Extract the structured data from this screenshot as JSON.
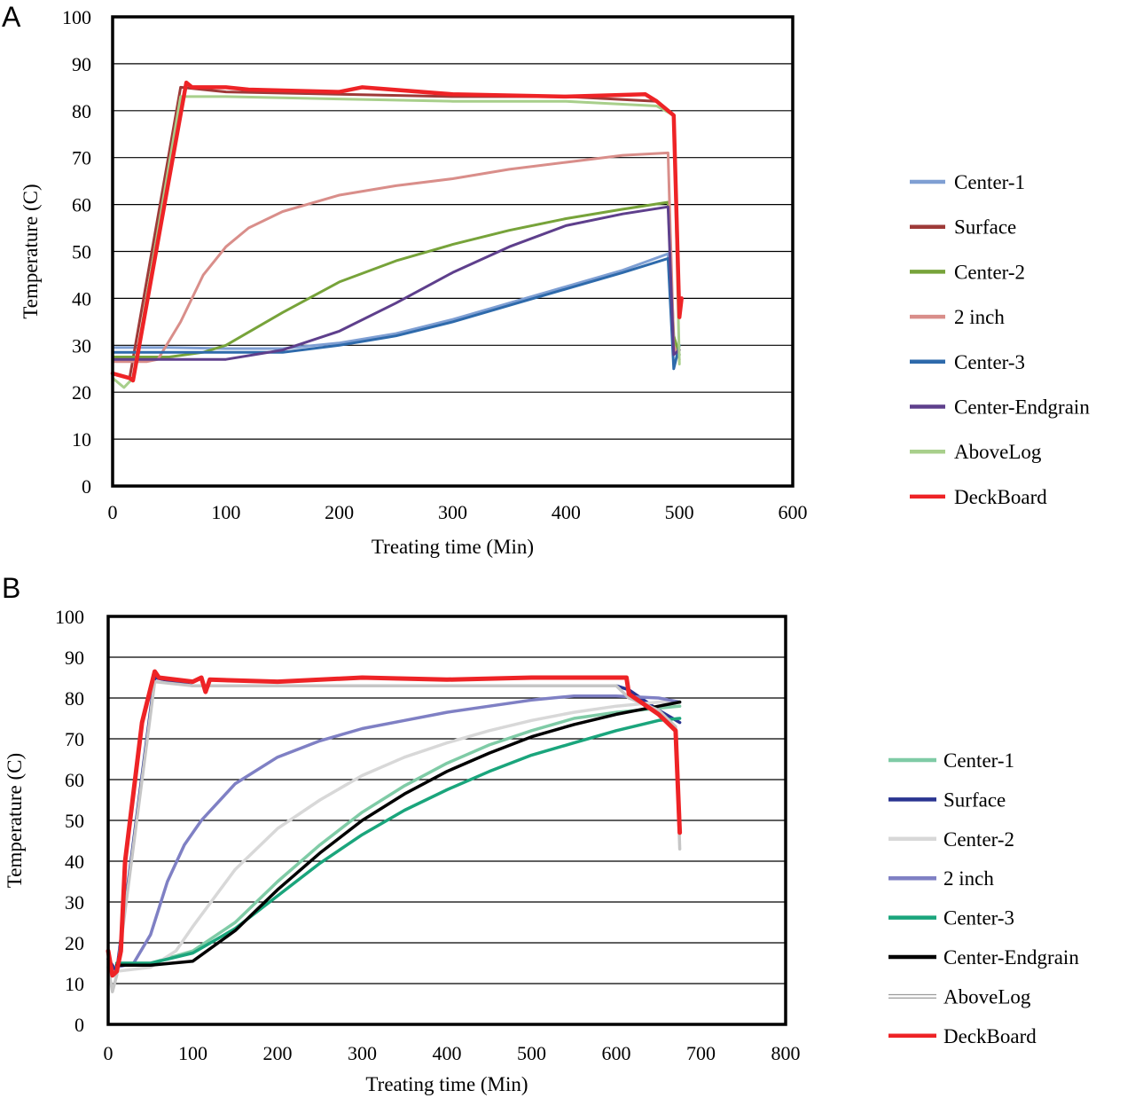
{
  "chart_data": [
    {
      "panel": "A",
      "type": "line",
      "title": "",
      "xlabel": "Treating time (Min)",
      "ylabel": "Temperature (C)",
      "xlim": [
        0,
        600
      ],
      "ylim": [
        0,
        100
      ],
      "xticks": [
        0,
        100,
        200,
        300,
        400,
        500,
        600
      ],
      "yticks": [
        0,
        10,
        20,
        30,
        40,
        50,
        60,
        70,
        80,
        90,
        100
      ],
      "grid": true,
      "legend_position": "right",
      "series": [
        {
          "name": "Center-1",
          "color": "#7f9fd3",
          "x": [
            0,
            50,
            100,
            150,
            200,
            250,
            300,
            350,
            400,
            450,
            490,
            495,
            500
          ],
          "y": [
            29.5,
            29.5,
            29.3,
            29.3,
            30.5,
            32.5,
            35.5,
            39,
            42.5,
            46,
            49.5,
            30,
            28
          ]
        },
        {
          "name": "Surface",
          "color": "#9e3a38",
          "x": [
            0,
            15,
            60,
            100,
            200,
            300,
            400,
            480,
            495,
            500
          ],
          "y": [
            24,
            23,
            85,
            84,
            83.5,
            83,
            83,
            82,
            79,
            36
          ]
        },
        {
          "name": "Center-2",
          "color": "#77a33a",
          "x": [
            0,
            50,
            80,
            100,
            150,
            200,
            250,
            300,
            350,
            400,
            450,
            490,
            495,
            500
          ],
          "y": [
            27.5,
            27.5,
            28.5,
            30,
            37,
            43.5,
            48,
            51.5,
            54.5,
            57,
            59,
            60.5,
            32,
            28
          ]
        },
        {
          "name": "2 inch",
          "color": "#d98e8a",
          "x": [
            0,
            30,
            40,
            60,
            80,
            100,
            120,
            150,
            200,
            250,
            300,
            350,
            400,
            450,
            490,
            495,
            500
          ],
          "y": [
            26.5,
            26.5,
            27,
            35,
            45,
            51,
            55,
            58.5,
            62,
            64,
            65.5,
            67.5,
            69,
            70.5,
            71,
            30,
            27
          ]
        },
        {
          "name": "Center-3",
          "color": "#2e6aab",
          "x": [
            0,
            50,
            100,
            150,
            200,
            250,
            300,
            350,
            400,
            450,
            490,
            495,
            500
          ],
          "y": [
            28.5,
            28.5,
            28.5,
            28.5,
            30,
            32,
            35,
            38.5,
            42,
            45.5,
            48.5,
            25,
            30
          ]
        },
        {
          "name": "Center-Endgrain",
          "color": "#5e3f8c",
          "x": [
            0,
            50,
            100,
            150,
            200,
            250,
            300,
            350,
            400,
            450,
            490,
            495,
            500
          ],
          "y": [
            27,
            27,
            27,
            29,
            33,
            39,
            45.5,
            51,
            55.5,
            58,
            59.5,
            28,
            29
          ]
        },
        {
          "name": "AboveLog",
          "color": "#a8cf8b",
          "x": [
            0,
            10,
            18,
            60,
            100,
            200,
            300,
            400,
            480,
            495,
            500
          ],
          "y": [
            23,
            21,
            23,
            83,
            83,
            82.5,
            82,
            82,
            81,
            79,
            26
          ]
        },
        {
          "name": "DeckBoard",
          "color": "#ee2326",
          "x": [
            0,
            15,
            18,
            65,
            70,
            100,
            120,
            200,
            220,
            300,
            400,
            470,
            480,
            495,
            500,
            502
          ],
          "y": [
            24,
            23,
            22.5,
            86,
            85,
            85,
            84.5,
            84,
            85,
            83.5,
            83,
            83.5,
            82,
            79,
            36,
            40
          ]
        }
      ]
    },
    {
      "panel": "B",
      "type": "line",
      "title": "",
      "xlabel": "Treating time (Min)",
      "ylabel": "Temperature (C)",
      "xlim": [
        0,
        800
      ],
      "ylim": [
        0,
        100
      ],
      "xticks": [
        0,
        100,
        200,
        300,
        400,
        500,
        600,
        700,
        800
      ],
      "yticks": [
        0,
        10,
        20,
        30,
        40,
        50,
        60,
        70,
        80,
        90,
        100
      ],
      "grid": true,
      "legend_position": "right",
      "series": [
        {
          "name": "Center-1",
          "color": "#7fcba6",
          "x": [
            10,
            50,
            100,
            150,
            200,
            250,
            300,
            350,
            400,
            450,
            500,
            550,
            600,
            650,
            675
          ],
          "y": [
            15,
            15,
            18,
            25,
            35,
            44,
            52,
            58.5,
            64,
            68.5,
            72,
            75,
            76.5,
            77.5,
            78
          ]
        },
        {
          "name": "Surface",
          "color": "#2a3491",
          "x": [
            0,
            10,
            55,
            100,
            150,
            200,
            300,
            400,
            500,
            600,
            615,
            650,
            675
          ],
          "y": [
            16,
            13,
            85,
            83,
            83,
            83,
            83,
            83,
            83,
            83,
            82,
            77,
            74
          ]
        },
        {
          "name": "Center-2",
          "color": "#d8d8d8",
          "x": [
            10,
            50,
            80,
            100,
            150,
            200,
            250,
            300,
            350,
            400,
            450,
            500,
            550,
            600,
            650,
            675
          ],
          "y": [
            13,
            14,
            18,
            24,
            38,
            48,
            55,
            61,
            65.5,
            69,
            72,
            74.5,
            76.5,
            78,
            79,
            79
          ]
        },
        {
          "name": "2 inch",
          "color": "#7f80c4",
          "x": [
            10,
            30,
            50,
            70,
            90,
            110,
            150,
            200,
            250,
            300,
            350,
            400,
            450,
            500,
            550,
            600,
            650,
            675
          ],
          "y": [
            14,
            15,
            22,
            35,
            44,
            50,
            59,
            65.5,
            69.5,
            72.5,
            74.5,
            76.5,
            78,
            79.5,
            80.5,
            80.5,
            80,
            79
          ]
        },
        {
          "name": "Center-3",
          "color": "#1aa57c",
          "x": [
            10,
            50,
            100,
            150,
            200,
            250,
            300,
            350,
            400,
            450,
            500,
            550,
            600,
            650,
            675
          ],
          "y": [
            15,
            15,
            17.5,
            23.5,
            31.5,
            39.5,
            46.5,
            52.5,
            57.5,
            62,
            66,
            69,
            72,
            74.5,
            75
          ]
        },
        {
          "name": "Center-Endgrain",
          "color": "#000000",
          "x": [
            10,
            50,
            100,
            150,
            200,
            250,
            300,
            350,
            400,
            450,
            500,
            550,
            600,
            650,
            675
          ],
          "y": [
            14.5,
            14.5,
            15.5,
            23,
            33,
            42,
            50,
            56.5,
            62,
            66.5,
            70.5,
            73.5,
            76,
            78,
            79
          ]
        },
        {
          "name": "AboveLog",
          "color": "#c6c6c6",
          "x": [
            0,
            5,
            10,
            55,
            100,
            300,
            600,
            615,
            650,
            670,
            675
          ],
          "y": [
            14,
            8,
            12,
            84,
            83,
            83,
            83,
            80,
            77,
            73,
            43
          ]
        },
        {
          "name": "DeckBoard",
          "color": "#ee2326",
          "x": [
            0,
            5,
            10,
            15,
            20,
            40,
            55,
            60,
            100,
            110,
            115,
            120,
            200,
            300,
            400,
            500,
            600,
            612,
            615,
            650,
            670,
            675
          ],
          "y": [
            18,
            12,
            13,
            18,
            40,
            74,
            86.5,
            85,
            84,
            85,
            81.5,
            84.5,
            84,
            85,
            84.5,
            85,
            85,
            85,
            81,
            76,
            72,
            47
          ]
        }
      ]
    }
  ],
  "panels": [
    {
      "letter": "A"
    },
    {
      "letter": "B"
    }
  ]
}
